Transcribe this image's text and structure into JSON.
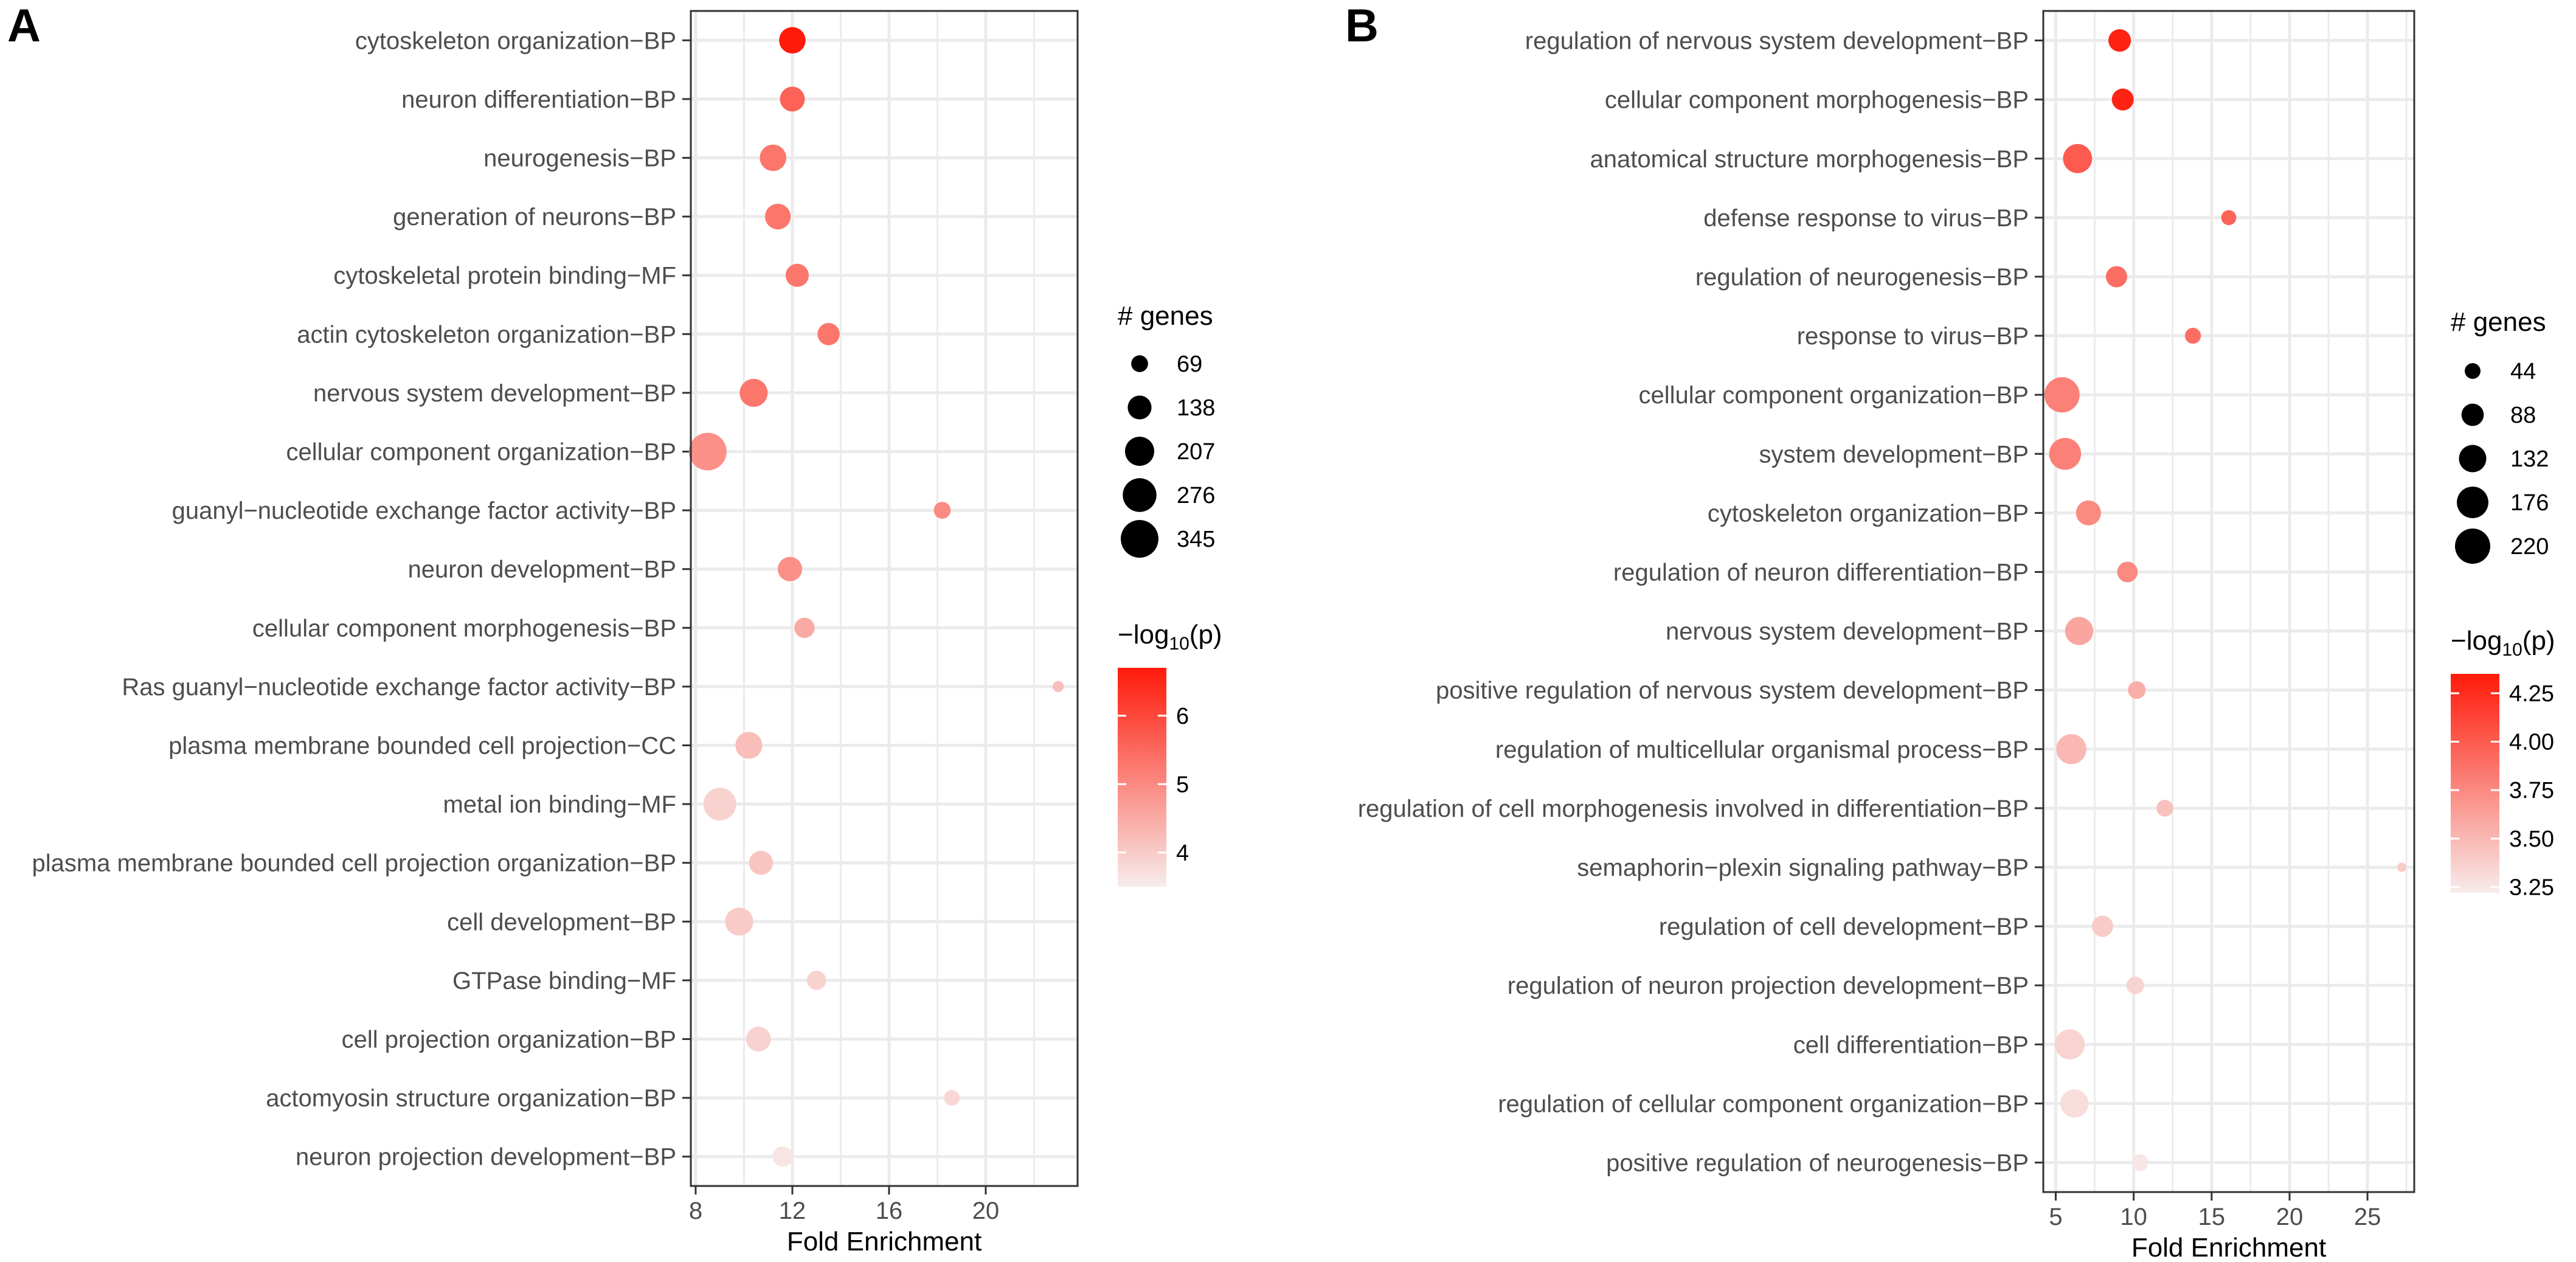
{
  "colors": {
    "low": "#f7eceb",
    "high": "#ff1a0a",
    "grid": "#ebebeb",
    "panel_border": "#333333",
    "tick": "#333333"
  },
  "chart_data": [
    {
      "panel_label": "A",
      "type": "scatter",
      "xlabel": "Fold Enrichment",
      "xlim": [
        7.8,
        23.8
      ],
      "xticks": [
        8,
        12,
        16,
        20
      ],
      "xtick_labels": [
        "8",
        "12",
        "16",
        "20"
      ],
      "minor_xticks": [
        10,
        14,
        18,
        22
      ],
      "categories": [
        "cytoskeleton organization−BP",
        "neuron differentiation−BP",
        "neurogenesis−BP",
        "generation of neurons−BP",
        "cytoskeletal protein binding−MF",
        "actin cytoskeleton organization−BP",
        "nervous system development−BP",
        "cellular component organization−BP",
        "guanyl−nucleotide exchange factor activity−BP",
        "neuron development−BP",
        "cellular component morphogenesis−BP",
        "Ras guanyl−nucleotide exchange factor activity−BP",
        "plasma membrane bounded cell projection−CC",
        "metal ion binding−MF",
        "plasma membrane bounded cell projection organization−BP",
        "cell development−BP",
        "GTPase binding−MF",
        "cell projection organization−BP",
        "actomyosin structure organization−BP",
        "neuron projection development−BP"
      ],
      "fold_enrichment": [
        12.0,
        12.0,
        11.2,
        11.4,
        12.2,
        13.5,
        10.4,
        8.5,
        18.2,
        11.9,
        12.5,
        23.0,
        10.2,
        9.0,
        10.7,
        9.8,
        13.0,
        10.6,
        18.6,
        11.6
      ],
      "gene_count": [
        170,
        150,
        170,
        160,
        130,
        120,
        190,
        345,
        69,
        145,
        100,
        30,
        175,
        260,
        140,
        190,
        90,
        150,
        60,
        100
      ],
      "neg_log10_p": [
        6.7,
        5.6,
        5.3,
        5.3,
        5.3,
        5.3,
        5.3,
        4.9,
        5.0,
        4.9,
        4.5,
        4.2,
        4.2,
        3.9,
        4.1,
        4.0,
        3.9,
        3.9,
        3.8,
        3.6
      ],
      "size_legend": {
        "title": "# genes",
        "values": [
          69,
          138,
          207,
          276,
          345
        ],
        "labels": [
          "69",
          "138",
          "207",
          "276",
          "345"
        ]
      },
      "color_legend": {
        "title_main": "−log",
        "title_sub": "10",
        "title_end": "(p)",
        "range": [
          3.5,
          6.7
        ],
        "ticks": [
          4,
          5,
          6
        ],
        "tick_labels": [
          "4",
          "5",
          "6"
        ]
      }
    },
    {
      "panel_label": "B",
      "type": "scatter",
      "xlabel": "Fold Enrichment",
      "xlim": [
        4.2,
        28.0
      ],
      "xticks": [
        5,
        10,
        15,
        20,
        25
      ],
      "xtick_labels": [
        "5",
        "10",
        "15",
        "20",
        "25"
      ],
      "minor_xticks": [
        7.5,
        12.5,
        17.5,
        22.5,
        27.5
      ],
      "categories": [
        "regulation of nervous system development−BP",
        "cellular component morphogenesis−BP",
        "anatomical structure morphogenesis−BP",
        "defense response to virus−BP",
        "regulation of neurogenesis−BP",
        "response to virus−BP",
        "cellular component organization−BP",
        "system development−BP",
        "cytoskeleton organization−BP",
        "regulation of neuron differentiation−BP",
        "nervous system development−BP",
        "positive regulation of nervous system development−BP",
        "regulation of multicellular organismal process−BP",
        "regulation of cell morphogenesis involved in differentiation−BP",
        "semaphorin−plexin signaling pathway−BP",
        "regulation of cell development−BP",
        "regulation of neuron projection development−BP",
        "cell differentiation−BP",
        "regulation of cellular component organization−BP",
        "positive regulation of neurogenesis−BP"
      ],
      "fold_enrichment": [
        9.1,
        9.3,
        6.4,
        16.1,
        8.9,
        13.8,
        5.4,
        5.6,
        7.1,
        9.6,
        6.5,
        10.2,
        6.0,
        12.0,
        27.2,
        8.0,
        10.1,
        5.9,
        6.2,
        10.4
      ],
      "gene_count": [
        90,
        85,
        150,
        40,
        80,
        45,
        220,
        180,
        110,
        75,
        140,
        55,
        160,
        50,
        15,
        80,
        55,
        160,
        140,
        50
      ],
      "neg_log10_p": [
        4.3,
        4.3,
        4.0,
        3.95,
        3.9,
        3.9,
        3.8,
        3.8,
        3.75,
        3.75,
        3.6,
        3.55,
        3.5,
        3.45,
        3.4,
        3.4,
        3.35,
        3.35,
        3.3,
        3.25
      ],
      "size_legend": {
        "title": "# genes",
        "values": [
          44,
          88,
          132,
          176,
          220
        ],
        "labels": [
          "44",
          "88",
          "132",
          "176",
          "220"
        ]
      },
      "color_legend": {
        "title_main": "−log",
        "title_sub": "10",
        "title_end": "(p)",
        "range": [
          3.22,
          4.35
        ],
        "ticks": [
          3.25,
          3.5,
          3.75,
          4.0,
          4.25
        ],
        "tick_labels": [
          "3.25",
          "3.50",
          "3.75",
          "4.00",
          "4.25"
        ]
      }
    }
  ]
}
